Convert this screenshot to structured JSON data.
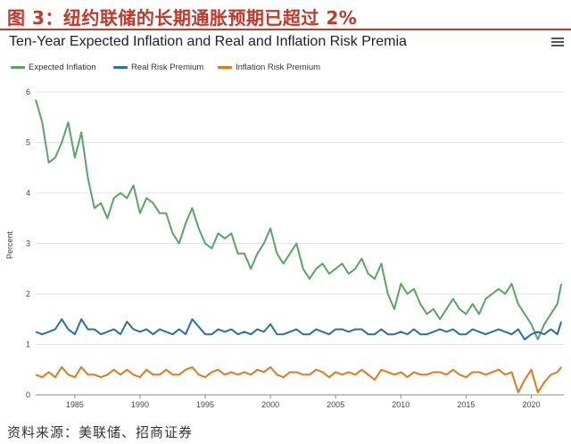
{
  "figure_title": "图 3：纽约联储的长期通胀预期已超过 2%",
  "source_note": "资料来源：美联储、招商证券",
  "menu_icon": "hamburger-menu-icon",
  "colors": {
    "expected": "#5aa469",
    "real": "#2b6fa3",
    "inflation_risk": "#e07b1c",
    "title_red": "#c0392b"
  },
  "chart_data": {
    "type": "line",
    "title": "Ten-Year Expected Inflation and Real and Inflation Risk Premia",
    "xlabel": "",
    "ylabel": "Percent",
    "xlim": [
      1982,
      2022.5
    ],
    "ylim": [
      0,
      6
    ],
    "x_ticks": [
      "1985",
      "1990",
      "1995",
      "2000",
      "2005",
      "2010",
      "2015",
      "2020"
    ],
    "y_ticks": [
      "0",
      "1",
      "2",
      "3",
      "4",
      "5",
      "6"
    ],
    "grid": "horizontal",
    "legend_position": "top-left",
    "x": [
      1982,
      1982.5,
      1983,
      1983.5,
      1984,
      1984.5,
      1985,
      1985.5,
      1986,
      1986.5,
      1987,
      1987.5,
      1988,
      1988.5,
      1989,
      1989.5,
      1990,
      1990.5,
      1991,
      1991.5,
      1992,
      1992.5,
      1993,
      1993.5,
      1994,
      1994.5,
      1995,
      1995.5,
      1996,
      1996.5,
      1997,
      1997.5,
      1998,
      1998.5,
      1999,
      1999.5,
      2000,
      2000.5,
      2001,
      2001.5,
      2002,
      2002.5,
      2003,
      2003.5,
      2004,
      2004.5,
      2005,
      2005.5,
      2006,
      2006.5,
      2007,
      2007.5,
      2008,
      2008.5,
      2009,
      2009.5,
      2010,
      2010.5,
      2011,
      2011.5,
      2012,
      2012.5,
      2013,
      2013.5,
      2014,
      2014.5,
      2015,
      2015.5,
      2016,
      2016.5,
      2017,
      2017.5,
      2018,
      2018.5,
      2019,
      2019.5,
      2020,
      2020.5,
      2021,
      2021.5,
      2022,
      2022.3
    ],
    "series": [
      {
        "name": "Expected Inflation",
        "values": [
          5.85,
          5.4,
          4.6,
          4.7,
          5.0,
          5.4,
          4.7,
          5.2,
          4.3,
          3.7,
          3.8,
          3.5,
          3.9,
          4.0,
          3.9,
          4.15,
          3.6,
          3.9,
          3.8,
          3.6,
          3.6,
          3.2,
          3.0,
          3.4,
          3.7,
          3.3,
          3.0,
          2.9,
          3.2,
          3.1,
          3.2,
          2.8,
          2.8,
          2.5,
          2.8,
          3.0,
          3.3,
          2.8,
          2.6,
          2.8,
          3.0,
          2.5,
          2.3,
          2.5,
          2.6,
          2.4,
          2.5,
          2.6,
          2.4,
          2.5,
          2.7,
          2.4,
          2.3,
          2.6,
          2.0,
          1.7,
          2.2,
          2.0,
          2.1,
          1.8,
          1.6,
          1.7,
          1.5,
          1.7,
          1.9,
          1.7,
          1.6,
          1.8,
          1.6,
          1.9,
          2.0,
          2.1,
          2.0,
          2.2,
          1.8,
          1.6,
          1.4,
          1.1,
          1.4,
          1.6,
          1.8,
          2.2
        ]
      },
      {
        "name": "Real Risk Premium",
        "values": [
          1.25,
          1.2,
          1.25,
          1.3,
          1.5,
          1.3,
          1.2,
          1.5,
          1.3,
          1.3,
          1.2,
          1.25,
          1.3,
          1.2,
          1.45,
          1.3,
          1.25,
          1.3,
          1.2,
          1.3,
          1.25,
          1.2,
          1.3,
          1.2,
          1.5,
          1.35,
          1.2,
          1.2,
          1.3,
          1.25,
          1.3,
          1.2,
          1.25,
          1.2,
          1.3,
          1.25,
          1.4,
          1.2,
          1.2,
          1.25,
          1.3,
          1.2,
          1.2,
          1.3,
          1.25,
          1.2,
          1.3,
          1.3,
          1.25,
          1.3,
          1.3,
          1.2,
          1.2,
          1.3,
          1.2,
          1.2,
          1.25,
          1.2,
          1.3,
          1.2,
          1.2,
          1.25,
          1.3,
          1.25,
          1.3,
          1.2,
          1.2,
          1.3,
          1.25,
          1.2,
          1.25,
          1.3,
          1.25,
          1.2,
          1.3,
          1.1,
          1.2,
          1.25,
          1.2,
          1.3,
          1.2,
          1.45
        ]
      },
      {
        "name": "Inflation Risk Premium",
        "values": [
          0.4,
          0.35,
          0.45,
          0.35,
          0.55,
          0.4,
          0.35,
          0.55,
          0.4,
          0.4,
          0.35,
          0.4,
          0.5,
          0.4,
          0.5,
          0.4,
          0.35,
          0.5,
          0.4,
          0.4,
          0.5,
          0.4,
          0.4,
          0.5,
          0.55,
          0.4,
          0.35,
          0.45,
          0.5,
          0.4,
          0.45,
          0.4,
          0.45,
          0.4,
          0.5,
          0.45,
          0.55,
          0.4,
          0.35,
          0.45,
          0.45,
          0.4,
          0.4,
          0.5,
          0.45,
          0.35,
          0.45,
          0.4,
          0.45,
          0.4,
          0.5,
          0.4,
          0.3,
          0.5,
          0.45,
          0.4,
          0.45,
          0.35,
          0.45,
          0.4,
          0.4,
          0.45,
          0.45,
          0.4,
          0.5,
          0.4,
          0.35,
          0.45,
          0.45,
          0.4,
          0.45,
          0.5,
          0.4,
          0.45,
          0.05,
          0.3,
          0.5,
          0.05,
          0.25,
          0.4,
          0.45,
          0.55
        ]
      }
    ]
  }
}
